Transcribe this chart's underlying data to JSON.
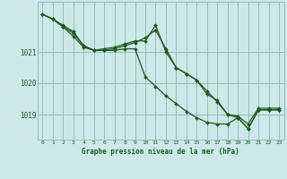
{
  "title": "Graphe pression niveau de la mer (hPa)",
  "background_color": "#cce8e8",
  "grid_color": "#99bbbb",
  "line_color": "#1a5c1a",
  "marker_color": "#1a5c1a",
  "xlim": [
    -0.5,
    23.5
  ],
  "ylim": [
    1018.2,
    1022.6
  ],
  "yticks": [
    1019,
    1020,
    1021
  ],
  "xticks": [
    0,
    1,
    2,
    3,
    4,
    5,
    6,
    7,
    8,
    9,
    10,
    11,
    12,
    13,
    14,
    15,
    16,
    17,
    18,
    19,
    20,
    21,
    22,
    23
  ],
  "series": [
    {
      "x": [
        0,
        1,
        2,
        3,
        4,
        5,
        6,
        7,
        8,
        9,
        10,
        11,
        12,
        13,
        14,
        15,
        16,
        17,
        18,
        19,
        20,
        21,
        22,
        23
      ],
      "y": [
        1022.2,
        1022.05,
        1021.85,
        1021.65,
        1021.2,
        1021.05,
        1021.05,
        1021.1,
        1021.2,
        1021.3,
        1021.45,
        1021.7,
        1021.1,
        1020.5,
        1020.3,
        1020.1,
        1019.75,
        1019.4,
        1019.0,
        1018.95,
        1018.7,
        1019.2,
        1019.2,
        1019.2
      ]
    },
    {
      "x": [
        0,
        1,
        2,
        3,
        4,
        5,
        6,
        7,
        8,
        9,
        10,
        11,
        12,
        13,
        14,
        15,
        16,
        17,
        18,
        19,
        20,
        21,
        22,
        23
      ],
      "y": [
        1022.2,
        1022.05,
        1021.8,
        1021.6,
        1021.2,
        1021.05,
        1021.1,
        1021.15,
        1021.25,
        1021.35,
        1021.35,
        1021.85,
        1021.0,
        1020.5,
        1020.3,
        1020.1,
        1019.65,
        1019.45,
        1019.0,
        1018.9,
        1018.55,
        1019.15,
        1019.15,
        1019.15
      ]
    },
    {
      "x": [
        0,
        1,
        2,
        3,
        4,
        5,
        6,
        7,
        8,
        9,
        10,
        11,
        12,
        13,
        14,
        15,
        16,
        17,
        18,
        19,
        20,
        21,
        22,
        23
      ],
      "y": [
        1022.2,
        1022.05,
        1021.8,
        1021.5,
        1021.15,
        1021.05,
        1021.05,
        1021.05,
        1021.1,
        1021.1,
        1020.2,
        1019.9,
        1019.6,
        1019.35,
        1019.1,
        1018.9,
        1018.75,
        1018.7,
        1018.7,
        1018.9,
        1018.55,
        1019.15,
        1019.15,
        1019.15
      ]
    }
  ]
}
